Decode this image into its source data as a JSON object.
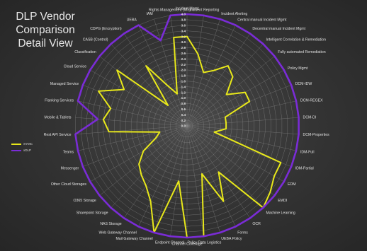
{
  "title_lines": [
    "DLP Vendor",
    "Comparison",
    "Detail View"
  ],
  "chart_data": {
    "type": "radar",
    "title": "DLP Vendor Comparison Detail View",
    "rlim": [
      0,
      4
    ],
    "ticks": [
      "0.0",
      "0.2",
      "0.4",
      "0.6",
      "0.8",
      "1.0",
      "1.2",
      "1.4",
      "1.6",
      "1.8",
      "2.0",
      "2.2",
      "2.4",
      "2.6",
      "2.8",
      "3.0",
      "3.2",
      "3.4",
      "3.6",
      "3.8",
      "4.0"
    ],
    "tick_values": [
      0,
      0.2,
      0.4,
      0.6,
      0.8,
      1.0,
      1.2,
      1.4,
      1.6,
      1.8,
      2.0,
      2.2,
      2.4,
      2.6,
      2.8,
      3.0,
      3.2,
      3.4,
      3.6,
      3.8,
      4.0
    ],
    "grid": true,
    "legend_position": "left",
    "categories": [
      "Incident Mgmt",
      "Incident Reporting",
      "Incident Alerting",
      "Central manual Incident Mgmt",
      "Decentral manual Incident Mgmt",
      "Intelligent Correlation & Remediation",
      "Fully automated Remediation",
      "Policy Mgmt",
      "DCM-IDW",
      "DCM-REGEX",
      "DCM-DI",
      "DCM-Properties",
      "IDM-Full",
      "IDM-Partial",
      "EDM",
      "EMDI",
      "Machine Learning",
      "OCR",
      "Forms",
      "UEBA Policy",
      "Policy Data Logistics",
      "Channel Coverage",
      "Endpoint Channel",
      "Mail Gateway Channel",
      "Web Gateway Channel",
      "NAS Storage",
      "Sharepoint Storage",
      "O365 Storage",
      "Other Cloud Storages",
      "Messenger",
      "Teams",
      "Rest API Service",
      "Mobile & Tablets",
      "Flanking Services",
      "Managed Service",
      "Cloud Service",
      "Classification",
      "CASB (Control)",
      "CDPG (Encryption)",
      "UEBA",
      "IAM",
      "Rights Management (MS)"
    ],
    "series": [
      {
        "name": "SYMC",
        "color": "#e8e81a",
        "values": [
          3.2,
          2.6,
          2.0,
          2.2,
          2.6,
          2.4,
          1.8,
          2.4,
          2.4,
          1.4,
          1.4,
          1.4,
          1.0,
          3.6,
          3.6,
          3.8,
          4.0,
          2.0,
          3.0,
          1.8,
          4.0,
          4.0,
          2.0,
          4.0,
          3.0,
          2.6,
          2.4,
          2.2,
          1.8,
          1.2,
          1.0,
          2.8,
          3.0,
          2.8,
          3.4,
          2.6,
          3.2,
          1.0,
          2.6,
          1.6,
          1.2,
          3.2
        ]
      },
      {
        "name": "xDLP",
        "color": "#7a2cd6",
        "values": [
          4.0,
          4.0,
          4.0,
          4.0,
          4.0,
          4.0,
          4.0,
          4.0,
          4.0,
          4.0,
          4.0,
          4.0,
          4.0,
          4.0,
          4.0,
          4.0,
          4.0,
          4.0,
          4.0,
          4.0,
          4.0,
          4.0,
          4.0,
          4.0,
          4.0,
          4.0,
          4.0,
          4.0,
          4.0,
          4.0,
          4.0,
          4.0,
          3.2,
          4.0,
          4.0,
          4.0,
          4.0,
          4.0,
          4.0,
          4.0,
          3.2,
          4.0
        ]
      }
    ]
  }
}
